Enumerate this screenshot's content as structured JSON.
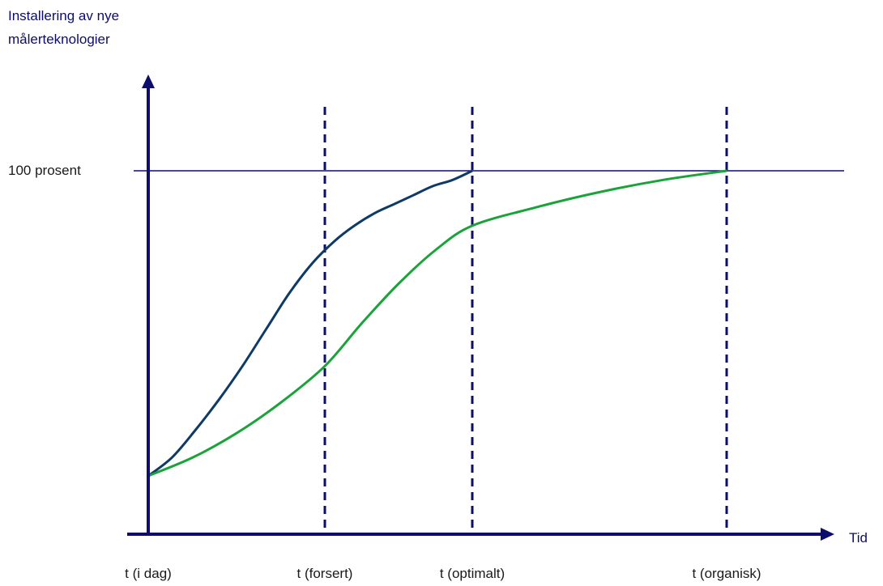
{
  "chart_data": {
    "type": "line",
    "title": "",
    "ylabel_lines": [
      "Installering av nye",
      "målerteknologier"
    ],
    "xlabel": "Tid",
    "reference_line_label": "100 prosent",
    "x_markers": [
      "t (i dag)",
      "t (forsert)",
      "t (optimalt)",
      "t (organisk)"
    ],
    "series": [
      {
        "color": "#0d3a66",
        "ends_at": "t (optimalt)",
        "points": [
          [
            0,
            0
          ],
          [
            0.2,
            6
          ],
          [
            0.4,
            15
          ],
          [
            0.6,
            25
          ],
          [
            0.8,
            36
          ],
          [
            1.0,
            48
          ],
          [
            1.2,
            60
          ],
          [
            1.4,
            70
          ],
          [
            1.6,
            77
          ],
          [
            1.8,
            82
          ],
          [
            2.0,
            86
          ],
          [
            2.2,
            89
          ],
          [
            2.4,
            92
          ],
          [
            2.6,
            95
          ],
          [
            2.8,
            97
          ],
          [
            3.0,
            100
          ]
        ]
      },
      {
        "color": "#1aa33a",
        "ends_at": "t (organisk)",
        "points": [
          [
            0,
            0
          ],
          [
            0.5,
            6
          ],
          [
            1.0,
            14
          ],
          [
            1.5,
            24
          ],
          [
            2.0,
            36
          ],
          [
            2.5,
            50
          ],
          [
            3.0,
            63
          ],
          [
            3.5,
            74
          ],
          [
            4.0,
            82
          ],
          [
            4.5,
            88
          ],
          [
            5.0,
            93
          ],
          [
            5.5,
            97
          ],
          [
            6.0,
            100
          ]
        ]
      }
    ]
  },
  "colors": {
    "axis": "#0d0d6b",
    "text": "#0d0d6b",
    "label_text": "#1a1a1a"
  }
}
